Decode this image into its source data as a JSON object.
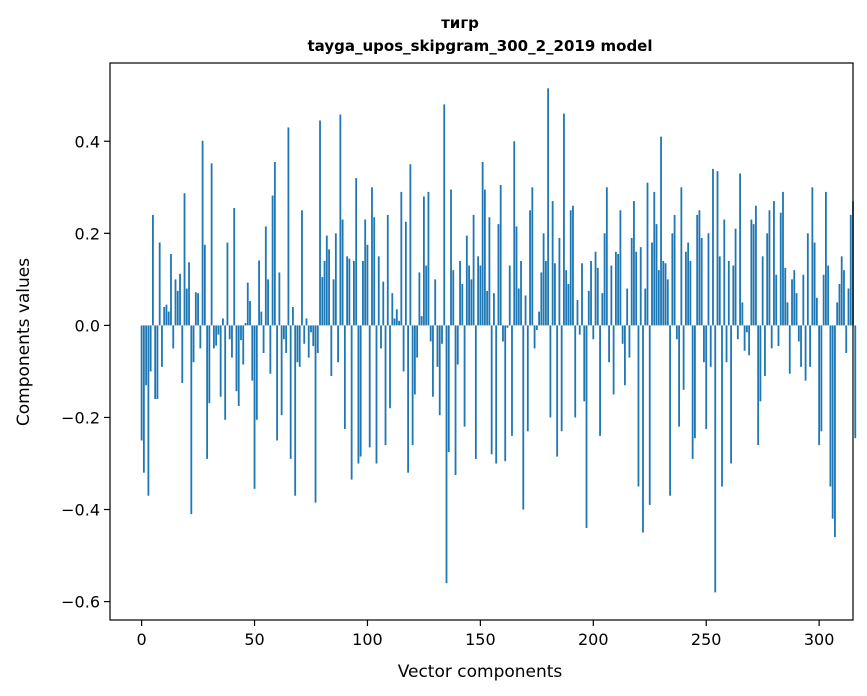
{
  "chart_data": {
    "type": "bar",
    "title": "тигр",
    "subtitle": "tayga_upos_skipgram_300_2_2019 model",
    "xlabel": "Vector components",
    "ylabel": "Components values",
    "xlim": [
      -14,
      315
    ],
    "ylim": [
      -0.64,
      0.57
    ],
    "x_ticks": [
      0,
      50,
      100,
      150,
      200,
      250,
      300
    ],
    "x_tick_labels": [
      "0",
      "50",
      "100",
      "150",
      "200",
      "250",
      "300"
    ],
    "y_ticks": [
      -0.6,
      -0.4,
      -0.2,
      0.0,
      0.2,
      0.4
    ],
    "y_tick_labels": [
      "−0.6",
      "−0.4",
      "−0.2",
      "0.0",
      "0.2",
      "0.4"
    ],
    "bar_color": "#1f77b4",
    "grid": false,
    "values": [
      -0.25,
      -0.32,
      -0.13,
      -0.37,
      -0.1,
      0.24,
      -0.16,
      -0.16,
      0.18,
      -0.09,
      0.04,
      0.045,
      0.03,
      0.155,
      -0.05,
      0.1,
      0.075,
      0.112,
      -0.125,
      0.287,
      0.08,
      0.137,
      -0.41,
      -0.08,
      0.072,
      0.07,
      -0.05,
      0.401,
      0.175,
      -0.29,
      -0.169,
      0.352,
      -0.05,
      -0.044,
      -0.02,
      -0.155,
      0.015,
      -0.205,
      0.18,
      -0.03,
      -0.07,
      0.255,
      -0.143,
      -0.175,
      -0.032,
      -0.085,
      0.005,
      0.093,
      0.053,
      -0.12,
      -0.355,
      -0.205,
      0.141,
      0.03,
      -0.06,
      0.215,
      0.1,
      -0.105,
      0.282,
      0.355,
      -0.25,
      0.115,
      -0.195,
      -0.03,
      -0.06,
      0.43,
      -0.29,
      0.04,
      -0.37,
      -0.08,
      -0.09,
      0.25,
      -0.04,
      0.015,
      -0.07,
      -0.015,
      -0.045,
      -0.385,
      -0.06,
      0.445,
      0.105,
      0.14,
      0.195,
      0.165,
      -0.11,
      0.1,
      0.2,
      -0.08,
      0.458,
      0.23,
      -0.225,
      0.15,
      0.145,
      -0.335,
      0.14,
      0.32,
      -0.3,
      -0.285,
      0.14,
      0.23,
      0.175,
      -0.265,
      0.3,
      0.235,
      -0.3,
      0.15,
      -0.05,
      0.095,
      -0.26,
      0.24,
      -0.18,
      0.07,
      0.015,
      0.035,
      0.01,
      0.29,
      -0.1,
      0.225,
      -0.32,
      0.35,
      -0.26,
      -0.15,
      -0.07,
      0.115,
      0.02,
      0.28,
      0.13,
      0.29,
      -0.035,
      -0.155,
      0.1,
      -0.09,
      -0.195,
      -0.04,
      0.48,
      -0.56,
      -0.275,
      0.295,
      0.12,
      -0.325,
      -0.085,
      0.14,
      0.09,
      -0.22,
      0.195,
      0.13,
      0.1,
      0.24,
      -0.29,
      0.15,
      0.13,
      0.355,
      0.295,
      0.075,
      0.235,
      -0.28,
      0.07,
      -0.3,
      0.22,
      0.305,
      -0.035,
      -0.295,
      -0.005,
      0.13,
      -0.24,
      0.4,
      0.215,
      0.08,
      0.14,
      -0.4,
      0.065,
      -0.23,
      0.25,
      0.3,
      -0.05,
      -0.01,
      0.03,
      0.115,
      0.2,
      0.14,
      0.515,
      -0.2,
      0.27,
      0.135,
      -0.285,
      0.19,
      -0.23,
      0.46,
      0.12,
      0.09,
      0.25,
      0.26,
      -0.2,
      0.055,
      -0.02,
      0.135,
      -0.165,
      -0.44,
      0.075,
      0.14,
      -0.03,
      0.16,
      0.125,
      -0.24,
      0.07,
      0.2,
      0.3,
      -0.08,
      0.13,
      -0.15,
      0.16,
      0.155,
      0.25,
      -0.04,
      -0.13,
      0.08,
      -0.07,
      0.19,
      0.27,
      0.16,
      -0.35,
      0.17,
      -0.45,
      0.08,
      0.31,
      -0.39,
      0.18,
      0.29,
      0.22,
      0.12,
      0.41,
      0.14,
      0.135,
      0.1,
      -0.37,
      0.2,
      0.24,
      -0.03,
      -0.22,
      0.3,
      -0.14,
      0.16,
      0.18,
      0.14,
      -0.29,
      -0.245,
      0.24,
      0.25,
      0.19,
      -0.08,
      -0.225,
      0.2,
      -0.09,
      0.34,
      -0.58,
      0.335,
      0.15,
      -0.35,
      0.23,
      -0.08,
      0.14,
      -0.3,
      0.13,
      0.21,
      -0.03,
      0.33,
      0.05,
      -0.055,
      -0.015,
      -0.065,
      0.23,
      0.22,
      0.26,
      -0.26,
      -0.165,
      0.15,
      -0.11,
      0.2,
      0.25,
      -0.05,
      0.27,
      0.11,
      -0.045,
      0.245,
      0.29,
      0.125,
      0.05,
      -0.105,
      0.1,
      0.12,
      0.07,
      -0.035,
      -0.09,
      0.11,
      -0.12,
      0.2,
      -0.09,
      0.3,
      0.18,
      0.06,
      -0.26,
      -0.23,
      0.11,
      0.29,
      0.13,
      -0.35,
      -0.42,
      -0.46,
      0.05,
      0.09,
      0.15,
      0.12,
      -0.06,
      0.08,
      0.24,
      0.27,
      -0.245
    ]
  }
}
